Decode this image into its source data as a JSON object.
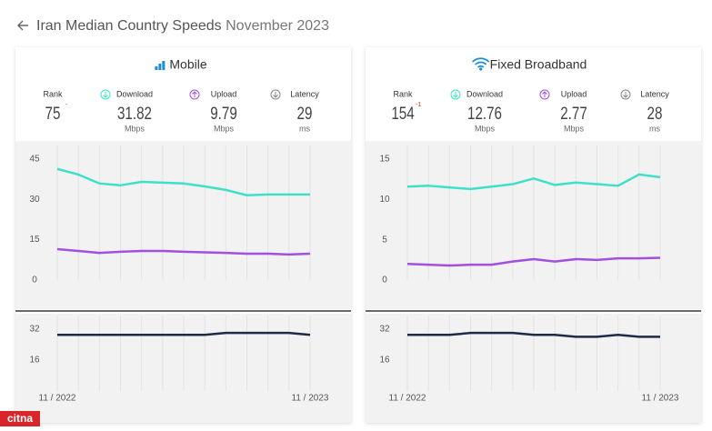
{
  "header": {
    "title": "Iran Median Country Speeds",
    "date": "November 2023"
  },
  "watermark": "citna",
  "panels": [
    {
      "title": "Mobile",
      "stats": [
        {
          "label": "Rank",
          "value": 75,
          "change": "-"
        },
        {
          "label": "Download",
          "value": 31.82,
          "unit": "Mbps"
        },
        {
          "label": "Upload",
          "value": 9.79,
          "unit": "Mbps"
        },
        {
          "label": "Latency",
          "value": 29,
          "unit": "ms"
        }
      ]
    },
    {
      "title": "Fixed Broadband",
      "stats": [
        {
          "label": "Rank",
          "value": 154,
          "change": "-1"
        },
        {
          "label": "Download",
          "value": 12.76,
          "unit": "Mbps"
        },
        {
          "label": "Upload",
          "value": 2.77,
          "unit": "Mbps"
        },
        {
          "label": "Latency",
          "value": 28,
          "unit": "ms"
        }
      ]
    }
  ],
  "chart_data": [
    {
      "type": "line",
      "categories": [
        "11 / 2022",
        null,
        null,
        null,
        null,
        null,
        null,
        null,
        null,
        null,
        null,
        null,
        "11 / 2023"
      ],
      "ylim": [
        0,
        50
      ],
      "yticks": [
        0,
        15,
        30,
        45
      ],
      "grid": true,
      "series": [
        {
          "color": "#3fe0c8",
          "values": [
            41.3,
            39.2,
            35.9,
            35.2,
            36.5,
            36.2,
            35.9,
            34.8,
            33.5,
            31.5,
            31.8,
            31.8,
            31.82
          ]
        },
        {
          "color": "#a34fe0",
          "values": [
            11.5,
            10.8,
            10.1,
            10.5,
            10.8,
            10.8,
            10.5,
            10.3,
            10.1,
            9.8,
            9.8,
            9.5,
            9.79
          ]
        }
      ]
    },
    {
      "type": "line",
      "categories": [
        "11 / 2022",
        null,
        null,
        null,
        null,
        null,
        null,
        null,
        null,
        null,
        null,
        null,
        "11 / 2023"
      ],
      "ylim": [
        0,
        37.6
      ],
      "yticks": [
        16,
        32
      ],
      "grid": true,
      "series": [
        {
          "color": "#1f2a44",
          "values": [
            29,
            29,
            29,
            29,
            29,
            29,
            29,
            29,
            30,
            30,
            30,
            30,
            29
          ]
        }
      ]
    },
    {
      "type": "line",
      "categories": [
        "11 / 2022",
        null,
        null,
        null,
        null,
        null,
        null,
        null,
        null,
        null,
        null,
        null,
        "11 / 2023"
      ],
      "ylim": [
        0,
        16.7
      ],
      "yticks": [
        0,
        5,
        10,
        15
      ],
      "grid": true,
      "series": [
        {
          "color": "#3fe0c8",
          "values": [
            11.6,
            11.7,
            11.5,
            11.3,
            11.6,
            11.9,
            12.6,
            11.8,
            12.1,
            11.9,
            11.7,
            13.1,
            12.76
          ]
        },
        {
          "color": "#a34fe0",
          "values": [
            2.0,
            1.9,
            1.8,
            1.9,
            1.9,
            2.3,
            2.6,
            2.3,
            2.6,
            2.5,
            2.7,
            2.7,
            2.77
          ]
        }
      ]
    },
    {
      "type": "line",
      "categories": [
        "11 / 2022",
        null,
        null,
        null,
        null,
        null,
        null,
        null,
        null,
        null,
        null,
        null,
        "11 / 2023"
      ],
      "ylim": [
        0,
        37.6
      ],
      "yticks": [
        16,
        32
      ],
      "grid": true,
      "series": [
        {
          "color": "#1f2a44",
          "values": [
            29,
            29,
            29,
            30,
            30,
            30,
            29,
            29,
            28,
            28,
            29,
            28,
            28
          ]
        }
      ]
    }
  ]
}
